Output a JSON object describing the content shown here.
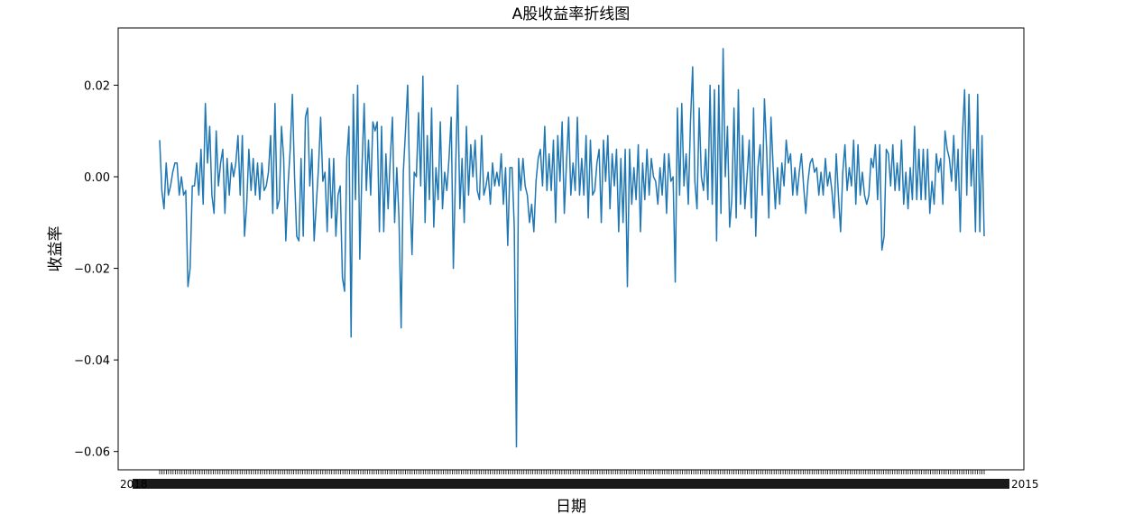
{
  "chart_data": {
    "type": "line",
    "title": "A股收益率折线图",
    "xlabel": "日期",
    "ylabel": "收益率",
    "ylim": [
      -0.064,
      0.0325
    ],
    "yticks": [
      -0.06,
      -0.04,
      -0.02,
      0.0,
      0.02
    ],
    "ytick_labels": [
      "−0.06",
      "−0.04",
      "−0.02",
      "0.00",
      "0.02"
    ],
    "grid": false,
    "line_color": "#1f77b4",
    "series": [
      {
        "values": [
          0.008,
          -0.003,
          -0.007,
          0.003,
          -0.004,
          -0.002,
          0.001,
          0.003,
          0.003,
          -0.004,
          0.0,
          -0.004,
          -0.003,
          -0.024,
          -0.02,
          -0.002,
          -0.002,
          0.003,
          -0.004,
          0.006,
          -0.006,
          0.016,
          0.003,
          0.011,
          -0.004,
          -0.008,
          0.01,
          -0.002,
          0.003,
          0.006,
          -0.008,
          0.004,
          -0.004,
          0.003,
          0.0,
          0.003,
          0.009,
          -0.004,
          0.009,
          -0.013,
          -0.006,
          0.006,
          -0.003,
          0.004,
          -0.004,
          0.003,
          -0.005,
          0.003,
          -0.003,
          -0.002,
          0.001,
          0.009,
          -0.008,
          0.016,
          -0.007,
          -0.005,
          0.011,
          0.004,
          -0.014,
          -0.002,
          0.006,
          0.018,
          0.0,
          -0.013,
          -0.014,
          0.004,
          -0.013,
          0.013,
          0.015,
          -0.002,
          0.006,
          -0.014,
          -0.006,
          0.002,
          0.013,
          -0.001,
          0.001,
          -0.012,
          0.004,
          -0.009,
          0.004,
          -0.013,
          -0.004,
          -0.002,
          -0.022,
          -0.025,
          0.004,
          0.011,
          -0.035,
          0.018,
          -0.005,
          0.02,
          -0.018,
          0.002,
          0.016,
          -0.003,
          0.008,
          -0.004,
          0.012,
          0.01,
          0.012,
          -0.012,
          0.011,
          -0.012,
          0.005,
          -0.007,
          0.004,
          0.013,
          -0.01,
          0.002,
          -0.009,
          -0.033,
          0.001,
          0.01,
          0.02,
          -0.003,
          -0.017,
          0.001,
          0.0,
          0.014,
          -0.002,
          0.022,
          -0.01,
          0.009,
          -0.005,
          0.015,
          -0.011,
          0.002,
          -0.005,
          0.012,
          -0.007,
          0.001,
          -0.003,
          0.004,
          0.013,
          -0.02,
          0.001,
          0.02,
          -0.007,
          0.004,
          -0.01,
          0.011,
          -0.004,
          0.007,
          0.0,
          0.008,
          -0.003,
          -0.005,
          0.009,
          -0.004,
          -0.002,
          0.001,
          -0.006,
          0.003,
          -0.002,
          0.001,
          -0.002,
          0.005,
          -0.006,
          0.002,
          -0.015,
          0.002,
          0.002,
          -0.011,
          -0.059,
          0.004,
          -0.003,
          0.004,
          -0.002,
          -0.004,
          -0.01,
          -0.006,
          -0.012,
          -0.001,
          0.004,
          0.006,
          -0.002,
          0.011,
          -0.003,
          0.005,
          -0.003,
          0.008,
          -0.01,
          0.009,
          -0.001,
          0.012,
          -0.008,
          0.003,
          0.013,
          -0.004,
          0.003,
          -0.003,
          0.013,
          -0.004,
          0.004,
          -0.004,
          0.009,
          -0.009,
          0.008,
          -0.004,
          -0.003,
          0.003,
          0.006,
          -0.01,
          0.008,
          -0.001,
          0.009,
          -0.007,
          0.005,
          -0.002,
          0.006,
          -0.012,
          0.004,
          -0.01,
          0.006,
          -0.024,
          0.006,
          -0.006,
          0.002,
          -0.005,
          0.007,
          -0.012,
          0.003,
          -0.005,
          0.006,
          -0.004,
          0.004,
          0.0,
          -0.001,
          -0.006,
          0.002,
          -0.004,
          0.005,
          -0.008,
          0.005,
          -0.001,
          0.0,
          -0.023,
          0.015,
          -0.004,
          0.016,
          -0.002,
          0.005,
          -0.006,
          0.012,
          0.024,
          -0.001,
          -0.007,
          0.015,
          0.0,
          -0.003,
          0.006,
          -0.005,
          0.02,
          -0.006,
          0.019,
          -0.014,
          0.02,
          -0.008,
          0.028,
          0.0,
          0.011,
          -0.011,
          -0.005,
          0.015,
          -0.009,
          0.019,
          -0.006,
          0.009,
          -0.007,
          0.0,
          0.008,
          -0.009,
          0.015,
          -0.013,
          0.002,
          0.007,
          -0.004,
          0.017,
          0.006,
          -0.009,
          0.013,
          0.002,
          -0.007,
          0.002,
          -0.006,
          0.003,
          -0.002,
          0.008,
          0.003,
          0.005,
          -0.004,
          0.002,
          -0.004,
          0.001,
          0.005,
          -0.002,
          -0.008,
          -0.001,
          0.003,
          0.004,
          0.001,
          0.002,
          -0.004,
          0.001,
          -0.004,
          0.004,
          -0.002,
          0.001,
          -0.003,
          -0.009,
          0.005,
          -0.004,
          -0.012,
          0.001,
          0.007,
          -0.003,
          0.002,
          -0.002,
          0.008,
          -0.006,
          0.007,
          -0.004,
          0.001,
          -0.004,
          -0.006,
          -0.004,
          0.004,
          0.002,
          0.007,
          -0.005,
          0.007,
          -0.016,
          -0.013,
          0.006,
          0.005,
          -0.002,
          0.007,
          -0.003,
          0.003,
          -0.003,
          0.008,
          -0.006,
          0.001,
          -0.007,
          0.002,
          -0.005,
          0.011,
          -0.005,
          0.006,
          -0.005,
          0.006,
          -0.005,
          0.006,
          -0.008,
          -0.001,
          -0.006,
          0.005,
          0.001,
          0.004,
          -0.006,
          0.01,
          0.006,
          0.004,
          -0.001,
          0.009,
          -0.003,
          0.006,
          -0.012,
          0.009,
          0.019,
          -0.004,
          0.018,
          -0.002,
          0.006,
          -0.012,
          0.018,
          -0.012,
          0.009,
          -0.013
        ]
      }
    ],
    "x_tick_count": 370,
    "x_tick_labels": {
      "first": "2018",
      "last": "2015"
    }
  }
}
